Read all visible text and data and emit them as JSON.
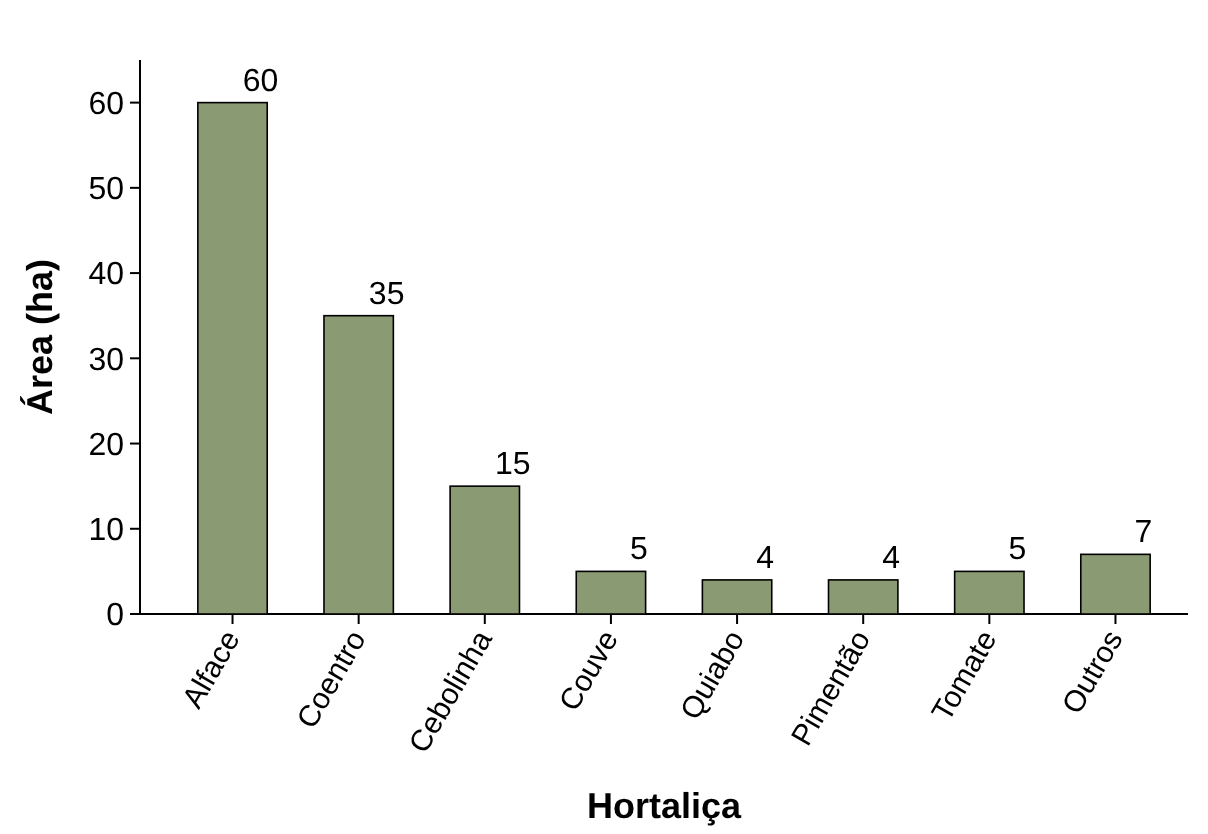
{
  "chart_data": {
    "type": "bar",
    "xlabel": "Hortaliça",
    "ylabel": "Área (ha)",
    "categories": [
      "Alface",
      "Coentro",
      "Cebolinha",
      "Couve",
      "Quiabo",
      "Pimentão",
      "Tomate",
      "Outros"
    ],
    "values": [
      60,
      35,
      15,
      5,
      4,
      4,
      5,
      7
    ],
    "color": "#8a9a72",
    "ylim": [
      0,
      65
    ],
    "yticks": [
      0,
      10,
      20,
      30,
      40,
      50,
      60
    ],
    "data_labels": true
  }
}
